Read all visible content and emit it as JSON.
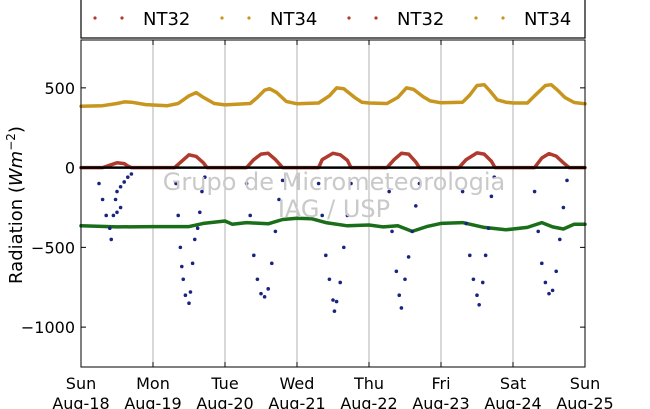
{
  "chart_data": {
    "type": "scatter",
    "title": "",
    "ylabel_prefix": "Radiation (",
    "ylabel_math": "Wm",
    "ylabel_exp": "−2",
    "ylabel_suffix": ")",
    "xlabel": "",
    "ylim": [
      -1250,
      800
    ],
    "xlim": [
      0,
      7
    ],
    "yticks": [
      500,
      0,
      -500,
      -1000
    ],
    "ytick_labels": [
      "500",
      "0",
      "−500",
      "−1000"
    ],
    "xticks": [
      {
        "day": "Sun",
        "date": "Aug-18"
      },
      {
        "day": "Mon",
        "date": "Aug-19"
      },
      {
        "day": "Tue",
        "date": "Aug-20"
      },
      {
        "day": "Wed",
        "date": "Aug-21"
      },
      {
        "day": "Thu",
        "date": "Aug-22"
      },
      {
        "day": "Fri",
        "date": "Aug-23"
      },
      {
        "day": "Sat",
        "date": "Aug-24"
      },
      {
        "day": "Sun",
        "date": "Aug-25"
      }
    ],
    "grid": "vertical",
    "legend_position": "top",
    "legend": [
      {
        "label": "NT32",
        "color": "#b03a2e"
      },
      {
        "label": "NT34",
        "color": "#c8951e"
      },
      {
        "label": "NT32",
        "color": "#b03a2e"
      },
      {
        "label": "NT34",
        "color": "#c8951e"
      }
    ],
    "watermark": [
      "Grupo de Micrometeorologia",
      "IAG / USP"
    ],
    "series": [
      {
        "color": "#c8951e",
        "kind": "smooth",
        "points": [
          [
            0.0,
            385
          ],
          [
            0.3,
            388
          ],
          [
            0.5,
            402
          ],
          [
            0.6,
            412
          ],
          [
            0.7,
            410
          ],
          [
            0.9,
            395
          ],
          [
            1.2,
            388
          ],
          [
            1.35,
            402
          ],
          [
            1.5,
            450
          ],
          [
            1.6,
            470
          ],
          [
            1.7,
            440
          ],
          [
            1.85,
            402
          ],
          [
            2.0,
            393
          ],
          [
            2.35,
            402
          ],
          [
            2.45,
            440
          ],
          [
            2.55,
            485
          ],
          [
            2.62,
            495
          ],
          [
            2.72,
            470
          ],
          [
            2.85,
            415
          ],
          [
            3.0,
            400
          ],
          [
            3.3,
            405
          ],
          [
            3.45,
            450
          ],
          [
            3.55,
            500
          ],
          [
            3.65,
            495
          ],
          [
            3.8,
            440
          ],
          [
            3.9,
            410
          ],
          [
            4.0,
            405
          ],
          [
            4.25,
            402
          ],
          [
            4.4,
            440
          ],
          [
            4.52,
            500
          ],
          [
            4.62,
            490
          ],
          [
            4.75,
            445
          ],
          [
            4.85,
            418
          ],
          [
            5.0,
            406
          ],
          [
            5.3,
            410
          ],
          [
            5.4,
            455
          ],
          [
            5.5,
            515
          ],
          [
            5.6,
            520
          ],
          [
            5.68,
            480
          ],
          [
            5.78,
            425
          ],
          [
            5.9,
            410
          ],
          [
            6.0,
            405
          ],
          [
            6.2,
            405
          ],
          [
            6.3,
            450
          ],
          [
            6.45,
            515
          ],
          [
            6.53,
            520
          ],
          [
            6.62,
            485
          ],
          [
            6.72,
            440
          ],
          [
            6.85,
            408
          ],
          [
            7.0,
            400
          ]
        ]
      },
      {
        "color": "#b03a2e",
        "kind": "smooth",
        "points": [
          [
            0.0,
            0
          ],
          [
            0.3,
            0
          ],
          [
            0.4,
            15
          ],
          [
            0.5,
            30
          ],
          [
            0.6,
            25
          ],
          [
            0.65,
            10
          ],
          [
            0.7,
            0
          ],
          [
            1.3,
            0
          ],
          [
            1.4,
            40
          ],
          [
            1.5,
            80
          ],
          [
            1.6,
            70
          ],
          [
            1.7,
            30
          ],
          [
            1.75,
            0
          ],
          [
            2.3,
            0
          ],
          [
            2.4,
            50
          ],
          [
            2.5,
            85
          ],
          [
            2.6,
            90
          ],
          [
            2.7,
            50
          ],
          [
            2.8,
            0
          ],
          [
            3.3,
            0
          ],
          [
            3.35,
            50
          ],
          [
            3.5,
            90
          ],
          [
            3.6,
            80
          ],
          [
            3.7,
            45
          ],
          [
            3.75,
            0
          ],
          [
            4.25,
            0
          ],
          [
            4.35,
            50
          ],
          [
            4.45,
            90
          ],
          [
            4.55,
            85
          ],
          [
            4.65,
            35
          ],
          [
            4.7,
            0
          ],
          [
            5.25,
            0
          ],
          [
            5.35,
            50
          ],
          [
            5.5,
            92
          ],
          [
            5.6,
            85
          ],
          [
            5.7,
            40
          ],
          [
            5.75,
            0
          ],
          [
            6.3,
            0
          ],
          [
            6.4,
            60
          ],
          [
            6.5,
            88
          ],
          [
            6.6,
            72
          ],
          [
            6.7,
            30
          ],
          [
            6.78,
            0
          ],
          [
            7.0,
            0
          ]
        ]
      },
      {
        "color": "#1a6e1a",
        "kind": "smooth",
        "points": [
          [
            0.0,
            -365
          ],
          [
            0.5,
            -372
          ],
          [
            1.0,
            -370
          ],
          [
            1.5,
            -370
          ],
          [
            1.7,
            -350
          ],
          [
            2.0,
            -335
          ],
          [
            2.1,
            -355
          ],
          [
            2.3,
            -345
          ],
          [
            2.6,
            -352
          ],
          [
            2.8,
            -325
          ],
          [
            3.0,
            -318
          ],
          [
            3.2,
            -320
          ],
          [
            3.4,
            -345
          ],
          [
            3.7,
            -365
          ],
          [
            4.0,
            -360
          ],
          [
            4.2,
            -372
          ],
          [
            4.4,
            -365
          ],
          [
            4.6,
            -400
          ],
          [
            4.8,
            -370
          ],
          [
            5.0,
            -350
          ],
          [
            5.3,
            -345
          ],
          [
            5.6,
            -375
          ],
          [
            5.9,
            -390
          ],
          [
            6.2,
            -375
          ],
          [
            6.4,
            -345
          ],
          [
            6.55,
            -372
          ],
          [
            6.7,
            -385
          ],
          [
            6.85,
            -355
          ],
          [
            7.0,
            -355
          ]
        ]
      },
      {
        "color": "#000000",
        "kind": "line",
        "points": [
          [
            0.0,
            0
          ],
          [
            7.0,
            0
          ]
        ]
      },
      {
        "color": "#1a237e",
        "kind": "dots",
        "points": [
          [
            0.25,
            -100
          ],
          [
            0.3,
            -200
          ],
          [
            0.35,
            -300
          ],
          [
            0.4,
            -380
          ],
          [
            0.42,
            -450
          ],
          [
            0.45,
            -300
          ],
          [
            0.48,
            -200
          ],
          [
            0.5,
            -150
          ],
          [
            0.55,
            -120
          ],
          [
            0.6,
            -90
          ],
          [
            0.65,
            -60
          ],
          [
            0.7,
            -40
          ],
          [
            0.5,
            -280
          ],
          [
            0.55,
            -250
          ],
          [
            1.32,
            -100
          ],
          [
            1.35,
            -300
          ],
          [
            1.38,
            -500
          ],
          [
            1.4,
            -620
          ],
          [
            1.42,
            -700
          ],
          [
            1.45,
            -800
          ],
          [
            1.5,
            -850
          ],
          [
            1.52,
            -780
          ],
          [
            1.55,
            -600
          ],
          [
            1.58,
            -450
          ],
          [
            1.62,
            -380
          ],
          [
            1.65,
            -280
          ],
          [
            1.68,
            -150
          ],
          [
            1.72,
            -60
          ],
          [
            2.3,
            -100
          ],
          [
            2.35,
            -300
          ],
          [
            2.4,
            -550
          ],
          [
            2.45,
            -700
          ],
          [
            2.5,
            -790
          ],
          [
            2.55,
            -810
          ],
          [
            2.6,
            -760
          ],
          [
            2.65,
            -600
          ],
          [
            2.7,
            -400
          ],
          [
            2.75,
            -200
          ],
          [
            2.8,
            -80
          ],
          [
            3.3,
            -100
          ],
          [
            3.35,
            -300
          ],
          [
            3.4,
            -550
          ],
          [
            3.45,
            -700
          ],
          [
            3.5,
            -830
          ],
          [
            3.52,
            -900
          ],
          [
            3.55,
            -840
          ],
          [
            3.6,
            -720
          ],
          [
            3.65,
            -500
          ],
          [
            3.7,
            -300
          ],
          [
            3.75,
            -100
          ],
          [
            4.28,
            -150
          ],
          [
            4.32,
            -400
          ],
          [
            4.38,
            -650
          ],
          [
            4.42,
            -800
          ],
          [
            4.45,
            -880
          ],
          [
            4.5,
            -700
          ],
          [
            4.55,
            -560
          ],
          [
            4.6,
            -400
          ],
          [
            4.65,
            -240
          ],
          [
            4.7,
            -100
          ],
          [
            5.3,
            -150
          ],
          [
            5.35,
            -350
          ],
          [
            5.4,
            -550
          ],
          [
            5.45,
            -700
          ],
          [
            5.5,
            -800
          ],
          [
            5.53,
            -860
          ],
          [
            5.58,
            -720
          ],
          [
            5.62,
            -550
          ],
          [
            5.66,
            -380
          ],
          [
            5.7,
            -180
          ],
          [
            5.74,
            -60
          ],
          [
            6.3,
            -150
          ],
          [
            6.35,
            -400
          ],
          [
            6.4,
            -600
          ],
          [
            6.45,
            -720
          ],
          [
            6.5,
            -790
          ],
          [
            6.55,
            -770
          ],
          [
            6.6,
            -650
          ],
          [
            6.65,
            -450
          ],
          [
            6.7,
            -250
          ],
          [
            6.75,
            -80
          ]
        ]
      }
    ]
  }
}
